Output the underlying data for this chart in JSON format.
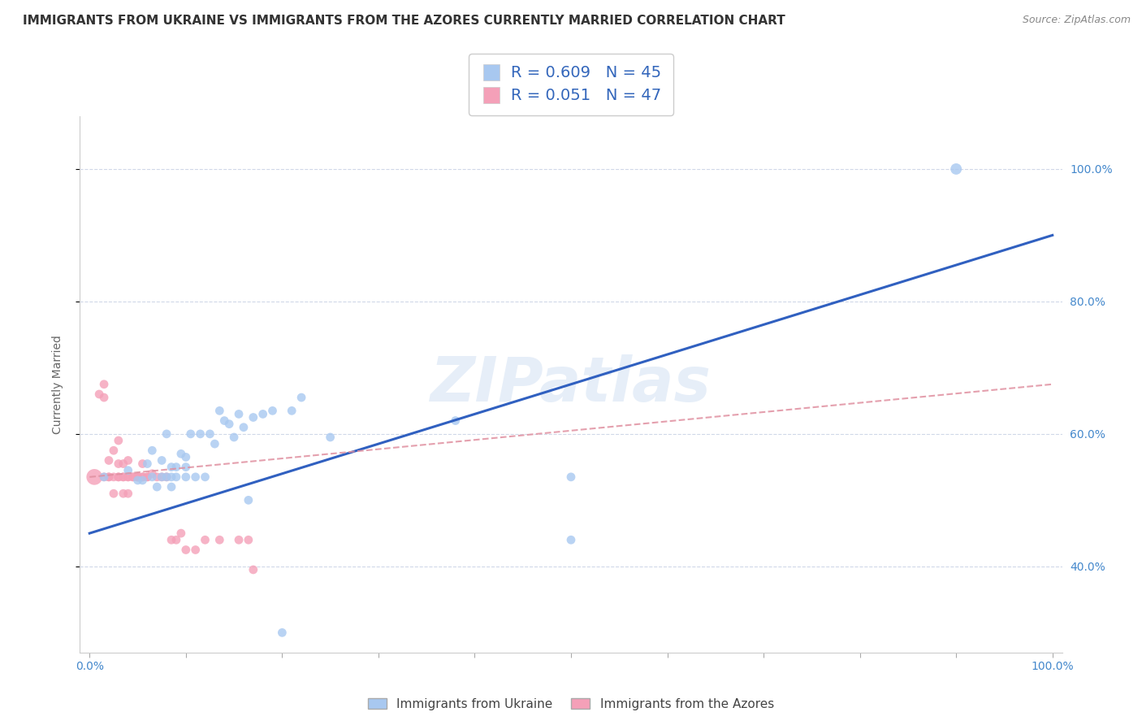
{
  "title": "IMMIGRANTS FROM UKRAINE VS IMMIGRANTS FROM THE AZORES CURRENTLY MARRIED CORRELATION CHART",
  "source": "Source: ZipAtlas.com",
  "ylabel": "Currently Married",
  "watermark": "ZIPatlas",
  "legend_r1": "R = 0.609",
  "legend_n1": "N = 45",
  "legend_r2": "R = 0.051",
  "legend_n2": "N = 47",
  "series1_label": "Immigrants from Ukraine",
  "series2_label": "Immigrants from the Azores",
  "color1": "#a8c8f0",
  "color2": "#f4a0b8",
  "line1_color": "#3060c0",
  "line2_color": "#e090a0",
  "xlim": [
    -0.01,
    1.01
  ],
  "ylim": [
    0.27,
    1.08
  ],
  "yticks": [
    0.4,
    0.6,
    0.8,
    1.0
  ],
  "ytick_labels": [
    "40.0%",
    "60.0%",
    "80.0%",
    "100.0%"
  ],
  "background_color": "#ffffff",
  "grid_color": "#d0d8e8",
  "title_fontsize": 11,
  "axis_label_fontsize": 10,
  "tick_fontsize": 10,
  "legend_fontsize": 13,
  "source_fontsize": 9,
  "tick_color": "#4488cc",
  "line1_x0": 0.0,
  "line1_y0": 0.45,
  "line1_x1": 1.0,
  "line1_y1": 0.9,
  "line2_x0": 0.0,
  "line2_y0": 0.535,
  "line2_x1": 1.0,
  "line2_y1": 0.675,
  "ukraine_x": [
    0.015,
    0.04,
    0.05,
    0.055,
    0.06,
    0.065,
    0.065,
    0.07,
    0.075,
    0.075,
    0.08,
    0.08,
    0.085,
    0.085,
    0.085,
    0.09,
    0.09,
    0.095,
    0.1,
    0.1,
    0.1,
    0.105,
    0.11,
    0.115,
    0.12,
    0.125,
    0.13,
    0.135,
    0.14,
    0.145,
    0.15,
    0.155,
    0.16,
    0.165,
    0.17,
    0.18,
    0.19,
    0.2,
    0.21,
    0.22,
    0.25,
    0.38,
    0.5,
    0.5,
    0.9
  ],
  "ukraine_y": [
    0.535,
    0.545,
    0.53,
    0.53,
    0.555,
    0.575,
    0.535,
    0.52,
    0.535,
    0.56,
    0.535,
    0.6,
    0.52,
    0.535,
    0.55,
    0.535,
    0.55,
    0.57,
    0.535,
    0.55,
    0.565,
    0.6,
    0.535,
    0.6,
    0.535,
    0.6,
    0.585,
    0.635,
    0.62,
    0.615,
    0.595,
    0.63,
    0.61,
    0.5,
    0.625,
    0.63,
    0.635,
    0.3,
    0.635,
    0.655,
    0.595,
    0.62,
    0.44,
    0.535,
    1.0
  ],
  "ukraine_sizes": [
    60,
    60,
    60,
    60,
    60,
    60,
    60,
    60,
    60,
    60,
    60,
    60,
    60,
    60,
    60,
    60,
    60,
    60,
    60,
    60,
    60,
    60,
    60,
    60,
    60,
    60,
    60,
    60,
    60,
    60,
    60,
    60,
    60,
    60,
    60,
    60,
    60,
    60,
    60,
    60,
    60,
    60,
    60,
    60,
    100
  ],
  "azores_x": [
    0.005,
    0.01,
    0.015,
    0.015,
    0.015,
    0.02,
    0.02,
    0.02,
    0.025,
    0.025,
    0.025,
    0.03,
    0.03,
    0.03,
    0.03,
    0.035,
    0.035,
    0.035,
    0.035,
    0.04,
    0.04,
    0.04,
    0.04,
    0.045,
    0.045,
    0.05,
    0.05,
    0.05,
    0.055,
    0.055,
    0.055,
    0.06,
    0.06,
    0.065,
    0.07,
    0.075,
    0.08,
    0.085,
    0.09,
    0.095,
    0.1,
    0.11,
    0.12,
    0.135,
    0.155,
    0.165,
    0.17
  ],
  "azores_y": [
    0.535,
    0.66,
    0.655,
    0.675,
    0.535,
    0.535,
    0.56,
    0.535,
    0.51,
    0.535,
    0.575,
    0.535,
    0.555,
    0.59,
    0.535,
    0.535,
    0.51,
    0.535,
    0.555,
    0.51,
    0.535,
    0.535,
    0.56,
    0.535,
    0.535,
    0.535,
    0.535,
    0.535,
    0.535,
    0.535,
    0.555,
    0.535,
    0.535,
    0.54,
    0.535,
    0.535,
    0.535,
    0.44,
    0.44,
    0.45,
    0.425,
    0.425,
    0.44,
    0.44,
    0.44,
    0.44,
    0.395
  ],
  "azores_sizes": [
    200,
    60,
    60,
    60,
    60,
    60,
    60,
    60,
    60,
    60,
    60,
    60,
    60,
    60,
    60,
    60,
    60,
    60,
    60,
    60,
    60,
    60,
    60,
    60,
    60,
    60,
    60,
    60,
    60,
    60,
    60,
    60,
    60,
    60,
    60,
    60,
    60,
    60,
    60,
    60,
    60,
    60,
    60,
    60,
    60,
    60,
    60
  ]
}
